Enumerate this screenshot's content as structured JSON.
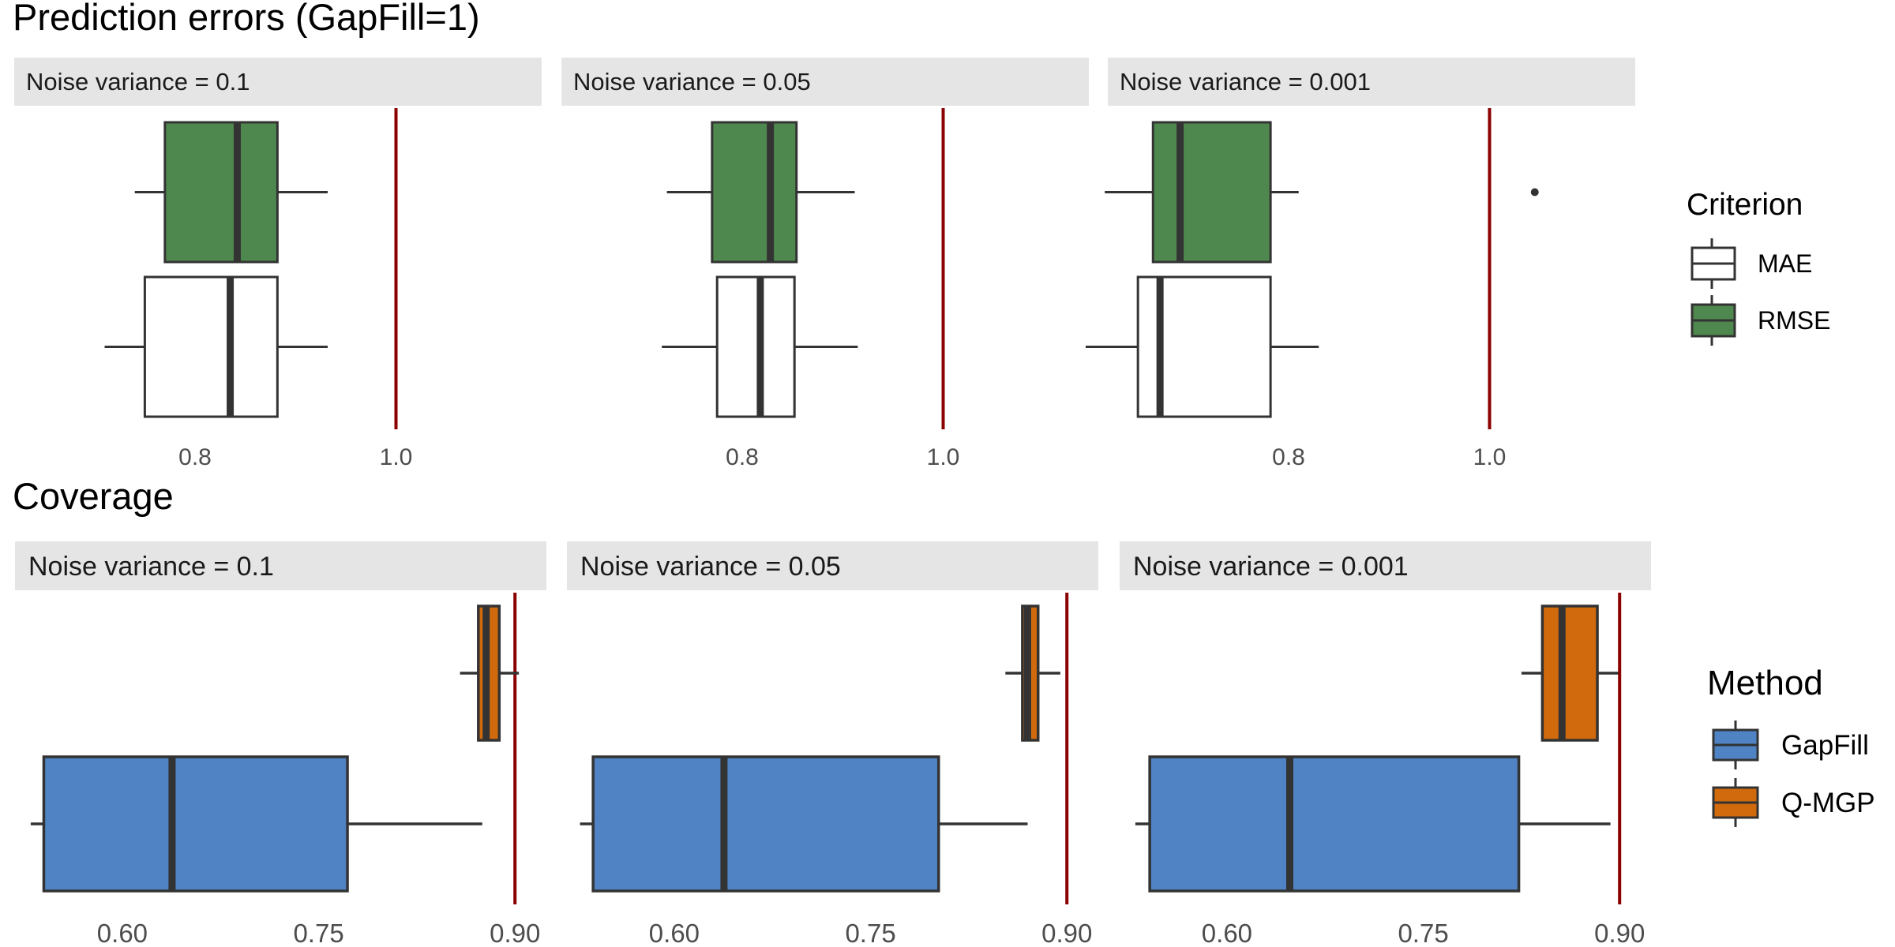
{
  "colors": {
    "strip_bg": "#e5e5e5",
    "box_outline": "#333333",
    "reference_line": "#8b0000",
    "rmse": "#4f884e",
    "mae": "#ffffff",
    "gapfill": "#4f83c4",
    "qmgp": "#d16a0c"
  },
  "chart_data": [
    {
      "type": "boxplot",
      "title": "Prediction errors (GapFill=1)",
      "orientation": "horizontal",
      "x_ticks": [
        0.8,
        1.0
      ],
      "x_tick_labels": [
        "0.8",
        "1.0"
      ],
      "reference_line": 1.0,
      "legend": {
        "title": "Criterion",
        "entries": [
          "MAE",
          "RMSE"
        ],
        "placement": "right"
      },
      "facets": [
        {
          "label": "Noise variance = 0.1",
          "xlim": [
            0.62,
            1.145
          ],
          "boxes": [
            {
              "name": "RMSE",
              "whisker_low": 0.74,
              "q1": 0.77,
              "median": 0.842,
              "q3": 0.882,
              "whisker_high": 0.932,
              "outliers": []
            },
            {
              "name": "MAE",
              "whisker_low": 0.71,
              "q1": 0.75,
              "median": 0.835,
              "q3": 0.882,
              "whisker_high": 0.932,
              "outliers": []
            }
          ]
        },
        {
          "label": "Noise variance = 0.05",
          "xlim": [
            0.62,
            1.145
          ],
          "boxes": [
            {
              "name": "RMSE",
              "whisker_low": 0.725,
              "q1": 0.77,
              "median": 0.828,
              "q3": 0.854,
              "whisker_high": 0.912,
              "outliers": []
            },
            {
              "name": "MAE",
              "whisker_low": 0.72,
              "q1": 0.775,
              "median": 0.818,
              "q3": 0.852,
              "whisker_high": 0.915,
              "outliers": []
            }
          ]
        },
        {
          "label": "Noise variance = 0.001",
          "xlim": [
            0.62,
            1.145
          ],
          "boxes": [
            {
              "name": "RMSE",
              "whisker_low": 0.617,
              "q1": 0.665,
              "median": 0.692,
              "q3": 0.782,
              "whisker_high": 0.81,
              "outliers": [
                1.045
              ]
            },
            {
              "name": "MAE",
              "whisker_low": 0.598,
              "q1": 0.65,
              "median": 0.672,
              "q3": 0.782,
              "whisker_high": 0.83,
              "outliers": []
            }
          ]
        }
      ]
    },
    {
      "type": "boxplot",
      "title": "Coverage",
      "orientation": "horizontal",
      "x_ticks": [
        0.6,
        0.75,
        0.9
      ],
      "x_tick_labels": [
        "0.60",
        "0.75",
        "0.90"
      ],
      "reference_line": 0.9,
      "legend": {
        "title": "Method",
        "entries": [
          "GapFill",
          "Q-MGP"
        ],
        "placement": "right"
      },
      "facets": [
        {
          "label": "Noise variance = 0.1",
          "xlim": [
            0.518,
            0.924
          ],
          "boxes": [
            {
              "name": "Q-MGP",
              "whisker_low": 0.858,
              "q1": 0.872,
              "median": 0.878,
              "q3": 0.888,
              "whisker_high": 0.903,
              "outliers": []
            },
            {
              "name": "GapFill",
              "whisker_low": 0.53,
              "q1": 0.54,
              "median": 0.638,
              "q3": 0.772,
              "whisker_high": 0.875,
              "outliers": []
            }
          ]
        },
        {
          "label": "Noise variance = 0.05",
          "xlim": [
            0.518,
            0.924
          ],
          "boxes": [
            {
              "name": "Q-MGP",
              "whisker_low": 0.853,
              "q1": 0.866,
              "median": 0.87,
              "q3": 0.878,
              "whisker_high": 0.895,
              "outliers": []
            },
            {
              "name": "GapFill",
              "whisker_low": 0.528,
              "q1": 0.538,
              "median": 0.638,
              "q3": 0.802,
              "whisker_high": 0.87,
              "outliers": []
            }
          ]
        },
        {
          "label": "Noise variance = 0.001",
          "xlim": [
            0.518,
            0.924
          ],
          "boxes": [
            {
              "name": "Q-MGP",
              "whisker_low": 0.825,
              "q1": 0.841,
              "median": 0.856,
              "q3": 0.883,
              "whisker_high": 0.899,
              "outliers": []
            },
            {
              "name": "GapFill",
              "whisker_low": 0.53,
              "q1": 0.541,
              "median": 0.648,
              "q3": 0.823,
              "whisker_high": 0.893,
              "outliers": []
            }
          ]
        }
      ]
    }
  ]
}
